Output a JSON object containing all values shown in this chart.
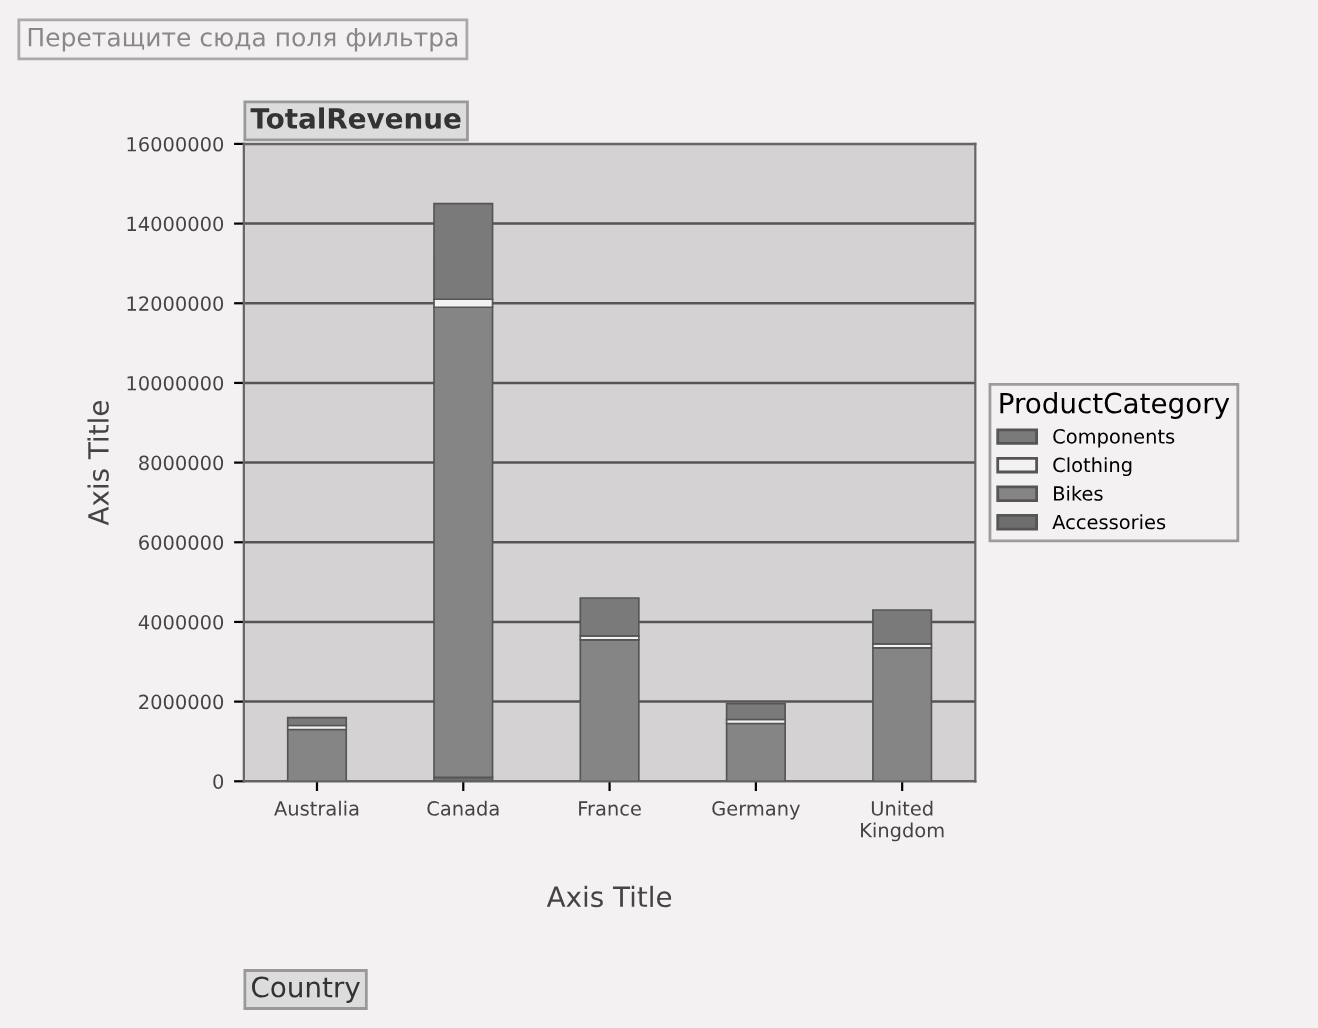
{
  "chart_data": {
    "type": "bar",
    "stacked": true,
    "title": "TotalRevenue",
    "xlabel": "Axis Title",
    "ylabel": "Axis Title",
    "legend_title": "ProductCategory",
    "annotations": [
      "Перетащите сюда поля фильтра",
      "Country"
    ],
    "categories": [
      "Australia",
      "Canada",
      "France",
      "Germany",
      "United\nKingdom"
    ],
    "series": [
      {
        "name": "Accessories",
        "color": "#6e6e6e",
        "values": [
          null,
          100000,
          null,
          null,
          null
        ]
      },
      {
        "name": "Bikes",
        "color": "#858585",
        "values": [
          1300000,
          11800000,
          3550000,
          1450000,
          3350000
        ]
      },
      {
        "name": "Clothing",
        "color": "#f2f2f2",
        "values": [
          100000,
          200000,
          100000,
          100000,
          100000
        ]
      },
      {
        "name": "Components",
        "color": "#7a7a7a",
        "values": [
          200000,
          2400000,
          950000,
          400000,
          850000
        ]
      }
    ],
    "ylim": [
      0,
      16000000
    ],
    "yticks": [
      0,
      2000000,
      4000000,
      6000000,
      8000000,
      10000000,
      12000000,
      14000000,
      16000000
    ],
    "grid": "y",
    "legend": "right"
  }
}
